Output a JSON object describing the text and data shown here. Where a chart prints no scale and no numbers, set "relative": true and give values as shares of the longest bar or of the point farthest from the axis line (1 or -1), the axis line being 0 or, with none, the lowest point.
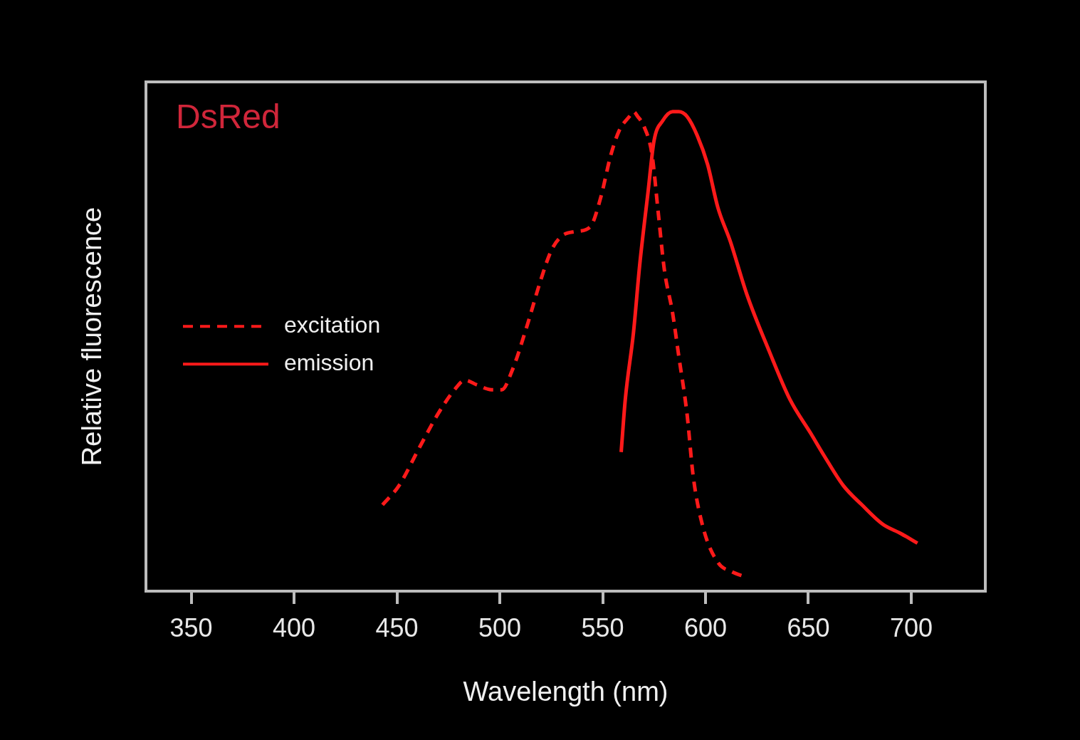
{
  "chart_data": {
    "type": "line",
    "title": "DsRed",
    "xlabel": "Wavelength (nm)",
    "ylabel": "Relative fluorescence",
    "relative": true,
    "xlim": [
      328,
      736
    ],
    "xticks": [
      350,
      400,
      450,
      500,
      550,
      600,
      650,
      700
    ],
    "grid": false,
    "legend": "left",
    "marker": "none",
    "series": [
      {
        "name": "excitation",
        "color": "#ff1a1a",
        "line_style": "dashed",
        "x": [
          443,
          451,
          461,
          470,
          478,
          483,
          489,
          496,
          501,
          506,
          513,
          520,
          525,
          530,
          537,
          544,
          549,
          554,
          558,
          563,
          565,
          567,
          570,
          574,
          577,
          580,
          584,
          587,
          591,
          594,
          599,
          606,
          613,
          619
        ],
        "values": [
          0.18,
          0.22,
          0.3,
          0.37,
          0.42,
          0.44,
          0.43,
          0.42,
          0.42,
          0.46,
          0.55,
          0.65,
          0.71,
          0.74,
          0.75,
          0.76,
          0.82,
          0.91,
          0.96,
          0.99,
          1,
          0.99,
          0.97,
          0.91,
          0.79,
          0.67,
          0.58,
          0.49,
          0.37,
          0.24,
          0.13,
          0.06,
          0.04,
          0.03
        ]
      },
      {
        "name": "emission",
        "color": "#ff1a1a",
        "line_style": "solid",
        "x": [
          559,
          561,
          565,
          568,
          572,
          575,
          579,
          584,
          587,
          591,
          596,
          601,
          606,
          612,
          620,
          631,
          641,
          651,
          658,
          667,
          676,
          686,
          695,
          703
        ],
        "values": [
          0.29,
          0.4,
          0.54,
          0.68,
          0.83,
          0.94,
          0.98,
          1,
          1,
          0.99,
          0.95,
          0.89,
          0.8,
          0.73,
          0.62,
          0.5,
          0.4,
          0.33,
          0.28,
          0.22,
          0.18,
          0.14,
          0.12,
          0.1
        ]
      }
    ]
  }
}
